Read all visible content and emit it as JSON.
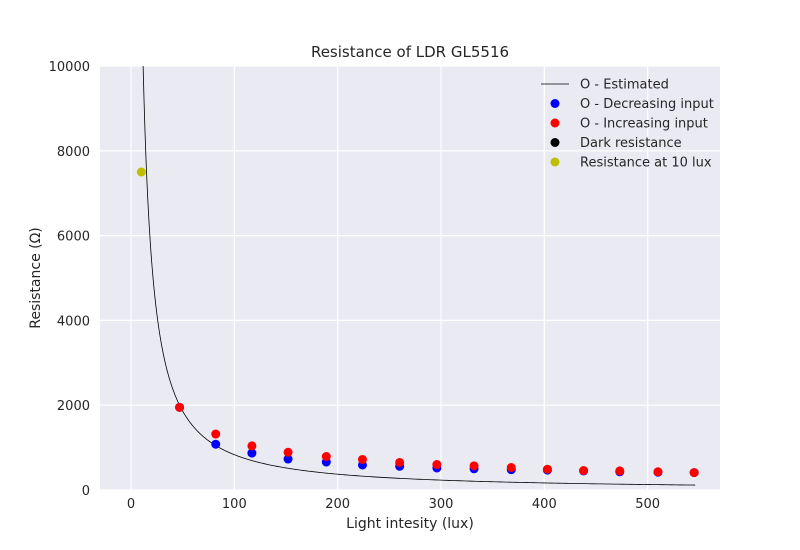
{
  "chart_data": {
    "type": "scatter",
    "title": "Resistance of LDR GL5516",
    "xlabel": "Light intesity (lux)",
    "ylabel": "Resistance (Ω)",
    "xlim": [
      -30,
      570
    ],
    "ylim": [
      0,
      10000
    ],
    "xticks": [
      0,
      100,
      200,
      300,
      400,
      500
    ],
    "yticks": [
      0,
      2000,
      4000,
      6000,
      8000,
      10000
    ],
    "grid": true,
    "legend_position": "top-right",
    "background": "#eaeaf2",
    "estimated_curve": {
      "name": "O - Estimated",
      "color": "#000000",
      "model": "power",
      "a": 174000,
      "b": -1.16,
      "x_range": [
        3,
        546
      ]
    },
    "series": [
      {
        "name": "O - Estimated",
        "kind": "line",
        "color": "#000000"
      },
      {
        "name": "O - Decreasing input",
        "kind": "scatter",
        "color": "#0000ff",
        "x": [
          47,
          82,
          117,
          152,
          189,
          224,
          260,
          296,
          332,
          368,
          403,
          438,
          473,
          510,
          545
        ],
        "y": [
          1950,
          1080,
          870,
          730,
          660,
          590,
          560,
          520,
          500,
          480,
          470,
          450,
          430,
          420,
          410
        ]
      },
      {
        "name": "O - Increasing input",
        "kind": "scatter",
        "color": "#ff0000",
        "x": [
          47,
          82,
          117,
          152,
          189,
          224,
          260,
          296,
          332,
          368,
          403,
          438,
          473,
          510,
          545
        ],
        "y": [
          1950,
          1320,
          1040,
          890,
          790,
          720,
          650,
          600,
          570,
          530,
          490,
          460,
          450,
          430,
          410
        ]
      },
      {
        "name": "Dark resistance",
        "kind": "scatter",
        "color": "#000000",
        "x": [],
        "y": []
      },
      {
        "name": "Resistance at 10 lux",
        "kind": "scatter",
        "color": "#bfbf00",
        "x": [
          10
        ],
        "y": [
          7500
        ]
      }
    ]
  }
}
